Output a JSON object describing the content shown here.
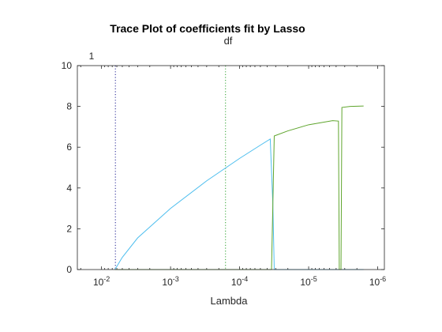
{
  "chart_data": {
    "type": "line",
    "title": "Trace Plot of coefficients fit by Lasso",
    "top_axis_label": "df",
    "top_tick_label": "1",
    "xlabel": "Lambda",
    "ylabel": "",
    "x_scale": "log",
    "x_direction": "reversed",
    "xlim": [
      0.0224,
      8e-07
    ],
    "ylim": [
      0,
      10
    ],
    "x_ticks": [
      {
        "value": 0.01,
        "base": "10",
        "exp": "-2"
      },
      {
        "value": 0.001,
        "base": "10",
        "exp": "-3"
      },
      {
        "value": 0.0001,
        "base": "10",
        "exp": "-4"
      },
      {
        "value": 1e-05,
        "base": "10",
        "exp": "-5"
      },
      {
        "value": 1e-06,
        "base": "10",
        "exp": "-6"
      }
    ],
    "y_ticks": [
      0,
      2,
      4,
      6,
      8,
      10
    ],
    "grid": false,
    "box": true,
    "reference_lines": [
      {
        "x": 0.0063,
        "color": "#1b1b8f",
        "style": "dotted"
      },
      {
        "x": 0.00016,
        "color": "#2ca02c",
        "style": "dotted"
      }
    ],
    "series": [
      {
        "color": "#4dbeee",
        "x": [
          0.0064,
          0.005,
          0.003,
          0.001,
          0.0003,
          0.0001,
          5e-05,
          3.6e-05,
          3.3e-05,
          3.15e-05,
          3e-05,
          1.6e-06
        ],
        "y": [
          0,
          0.6,
          1.55,
          3.0,
          4.35,
          5.45,
          6.1,
          6.4,
          3.2,
          0,
          0,
          0
        ]
      },
      {
        "color": "#5fa52d",
        "x": [
          0.0064,
          3.6e-05,
          3.45e-05,
          3.15e-05,
          2e-05,
          1e-05,
          4.5e-06,
          3.7e-06,
          3.6e-06,
          3.4e-06,
          3.3e-06,
          2.5e-06,
          1.6e-06
        ],
        "y": [
          0,
          0,
          0,
          6.55,
          6.8,
          7.1,
          7.3,
          7.28,
          0,
          0,
          7.95,
          8.0,
          8.02
        ]
      }
    ]
  }
}
